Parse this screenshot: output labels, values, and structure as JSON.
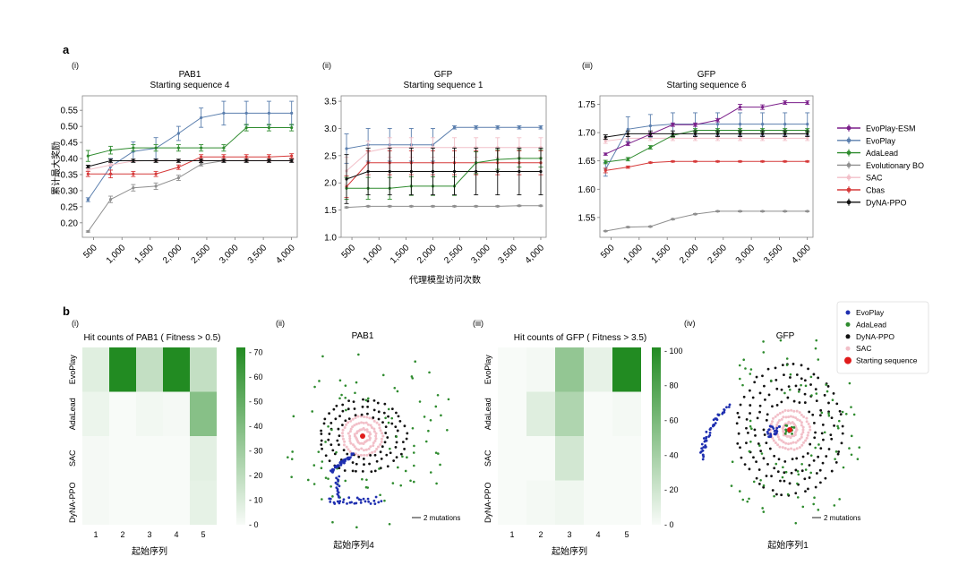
{
  "panel_a": {
    "letter": "a",
    "ylabel": "累计最大奖励",
    "xlabel": "代理模型访问次数",
    "legend": [
      {
        "name": "EvoPlay-ESM",
        "color": "#7b1f8a"
      },
      {
        "name": "EvoPlay",
        "color": "#5b7fae"
      },
      {
        "name": "AdaLead",
        "color": "#2e8b2e"
      },
      {
        "name": "Evolutionary BO",
        "color": "#8f8f8f"
      },
      {
        "name": "SAC",
        "color": "#f2bfc8"
      },
      {
        "name": "Cbas",
        "color": "#d63a3a"
      },
      {
        "name": "DyNA-PPO",
        "color": "#111111"
      }
    ]
  },
  "panel_b": {
    "letter": "b",
    "scatter_legend": [
      {
        "name": "EvoPlay",
        "color": "#1f2fb0"
      },
      {
        "name": "AdaLead",
        "color": "#2e8b2e"
      },
      {
        "name": "DyNA-PPO",
        "color": "#111111"
      },
      {
        "name": "SAC",
        "color": "#f2bfc8"
      },
      {
        "name": "Starting sequence",
        "color": "#e01b1b"
      }
    ],
    "scale_label": "2 mutations"
  },
  "chart_data": [
    {
      "id": "a-i",
      "type": "line",
      "label": "(i)",
      "title": "PAB1",
      "subtitle": "Starting sequence 4",
      "xlabel": "代理模型访问次数",
      "ylabel": "累计最大奖励",
      "x": [
        400,
        800,
        1200,
        1600,
        2000,
        2400,
        2800,
        3200,
        3600,
        4000
      ],
      "xticks": [
        500,
        1000,
        1500,
        2000,
        2500,
        3000,
        3500,
        4000
      ],
      "xtick_labels": [
        "500",
        "1,000",
        "1,500",
        "2,000",
        "2,500",
        "3,000",
        "3,500",
        "4,000"
      ],
      "yticks": [
        0.2,
        0.25,
        0.3,
        0.35,
        0.4,
        0.45,
        0.5,
        0.55
      ],
      "ytick_labels": [
        "0.20",
        "0.25",
        "0.30",
        "0.35",
        "0.40",
        "0.45",
        "0.50",
        "0.55"
      ],
      "ylim": [
        0.155,
        0.595
      ],
      "series": [
        {
          "name": "EvoPlay",
          "values": [
            0.272,
            0.375,
            0.422,
            0.432,
            0.478,
            0.527,
            0.541,
            0.541,
            0.541,
            0.541
          ],
          "err": [
            0.006,
            0.025,
            0.03,
            0.033,
            0.022,
            0.03,
            0.037,
            0.037,
            0.037,
            0.037
          ]
        },
        {
          "name": "AdaLead",
          "values": [
            0.408,
            0.426,
            0.433,
            0.433,
            0.433,
            0.433,
            0.433,
            0.496,
            0.496,
            0.496
          ],
          "err": [
            0.017,
            0.012,
            0.01,
            0.01,
            0.01,
            0.01,
            0.01,
            0.01,
            0.01,
            0.01
          ]
        },
        {
          "name": "Evolutionary BO",
          "values": [
            0.173,
            0.273,
            0.309,
            0.314,
            0.34,
            0.382,
            0.393,
            0.393,
            0.393,
            0.393
          ],
          "err": [
            0.002,
            0.01,
            0.01,
            0.01,
            0.008,
            0.005,
            0.003,
            0.003,
            0.003,
            0.003
          ]
        },
        {
          "name": "SAC",
          "values": [
            0.365,
            0.38,
            0.392,
            0.394,
            0.394,
            0.394,
            0.394,
            0.394,
            0.394,
            0.394
          ],
          "err": [
            0.004,
            0.004,
            0.003,
            0.003,
            0.003,
            0.003,
            0.003,
            0.003,
            0.003,
            0.003
          ]
        },
        {
          "name": "Cbas",
          "values": [
            0.352,
            0.352,
            0.352,
            0.352,
            0.373,
            0.405,
            0.405,
            0.405,
            0.405,
            0.408
          ],
          "err": [
            0.008,
            0.012,
            0.008,
            0.008,
            0.007,
            0.007,
            0.007,
            0.007,
            0.007,
            0.007
          ]
        },
        {
          "name": "DyNA-PPO",
          "values": [
            0.375,
            0.393,
            0.393,
            0.393,
            0.393,
            0.393,
            0.393,
            0.393,
            0.393,
            0.393
          ],
          "err": [
            0.004,
            0.005,
            0.005,
            0.005,
            0.005,
            0.005,
            0.005,
            0.005,
            0.005,
            0.005
          ]
        }
      ]
    },
    {
      "id": "a-ii",
      "type": "line",
      "label": "(ii)",
      "title": "GFP",
      "subtitle": "Starting sequence 1",
      "xlabel": "代理模型访问次数",
      "ylabel": "",
      "x": [
        400,
        800,
        1200,
        1600,
        2000,
        2400,
        2800,
        3200,
        3600,
        4000
      ],
      "xticks": [
        500,
        1000,
        1500,
        2000,
        2500,
        3000,
        3500,
        4000
      ],
      "xtick_labels": [
        "500",
        "1,000",
        "1,500",
        "2,000",
        "2,500",
        "3,000",
        "3,500",
        "4,000"
      ],
      "yticks": [
        1.0,
        1.5,
        2.0,
        2.5,
        3.0,
        3.5
      ],
      "ytick_labels": [
        "1.0",
        "1.5",
        "2.0",
        "2.5",
        "3.0",
        "3.5"
      ],
      "ylim": [
        1.0,
        3.6
      ],
      "series": [
        {
          "name": "EvoPlay",
          "values": [
            2.63,
            2.7,
            2.7,
            2.7,
            2.7,
            3.02,
            3.02,
            3.02,
            3.02,
            3.02
          ],
          "err": [
            0.27,
            0.3,
            0.3,
            0.3,
            0.3,
            0.03,
            0.03,
            0.03,
            0.03,
            0.03
          ]
        },
        {
          "name": "SAC",
          "values": [
            2.22,
            2.57,
            2.65,
            2.65,
            2.65,
            2.65,
            2.65,
            2.65,
            2.65,
            2.65
          ],
          "err": [
            0.25,
            0.2,
            0.18,
            0.18,
            0.18,
            0.18,
            0.18,
            0.18,
            0.18,
            0.18
          ]
        },
        {
          "name": "Cbas",
          "values": [
            1.93,
            2.37,
            2.37,
            2.37,
            2.37,
            2.37,
            2.37,
            2.37,
            2.37,
            2.37
          ],
          "err": [
            0.2,
            0.22,
            0.22,
            0.22,
            0.22,
            0.22,
            0.22,
            0.22,
            0.22,
            0.22
          ]
        },
        {
          "name": "AdaLead",
          "values": [
            1.9,
            1.9,
            1.9,
            1.94,
            1.94,
            1.94,
            2.37,
            2.43,
            2.45,
            2.45
          ],
          "err": [
            0.2,
            0.2,
            0.2,
            0.17,
            0.17,
            0.17,
            0.2,
            0.18,
            0.16,
            0.16
          ]
        },
        {
          "name": "DyNA-PPO",
          "values": [
            2.07,
            2.21,
            2.21,
            2.21,
            2.21,
            2.21,
            2.21,
            2.21,
            2.21,
            2.21
          ],
          "err": [
            0.45,
            0.43,
            0.43,
            0.43,
            0.43,
            0.43,
            0.43,
            0.43,
            0.43,
            0.43
          ]
        },
        {
          "name": "Evolutionary BO",
          "values": [
            1.55,
            1.57,
            1.57,
            1.57,
            1.57,
            1.57,
            1.57,
            1.57,
            1.58,
            1.58
          ],
          "err": [
            0.01,
            0.01,
            0.01,
            0.01,
            0.01,
            0.01,
            0.01,
            0.01,
            0.01,
            0.01
          ]
        }
      ]
    },
    {
      "id": "a-iii",
      "type": "line",
      "label": "(iii)",
      "title": "GFP",
      "subtitle": "Starting sequence 6",
      "xlabel": "代理模型访问次数",
      "ylabel": "",
      "x": [
        400,
        800,
        1200,
        1600,
        2000,
        2400,
        2800,
        3200,
        3600,
        4000
      ],
      "xticks": [
        500,
        1000,
        1500,
        2000,
        2500,
        3000,
        3500,
        4000
      ],
      "xtick_labels": [
        "500",
        "1,000",
        "1,500",
        "2,000",
        "2,500",
        "3,000",
        "3,500",
        "4,000"
      ],
      "yticks": [
        1.55,
        1.6,
        1.65,
        1.7,
        1.75
      ],
      "ytick_labels": [
        "1.55",
        "1.60",
        "1.65",
        "1.70",
        "1.75"
      ],
      "ylim": [
        1.515,
        1.765
      ],
      "series": [
        {
          "name": "SAC",
          "values": [
            1.685,
            1.69,
            1.69,
            1.69,
            1.69,
            1.69,
            1.69,
            1.69,
            1.69,
            1.69
          ],
          "err": [
            0.004,
            0.004,
            0.004,
            0.004,
            0.004,
            0.004,
            0.004,
            0.004,
            0.004,
            0.004
          ]
        },
        {
          "name": "EvoPlay",
          "values": [
            1.635,
            1.706,
            1.712,
            1.715,
            1.715,
            1.715,
            1.715,
            1.715,
            1.715,
            1.715
          ],
          "err": [
            0.012,
            0.022,
            0.02,
            0.02,
            0.02,
            0.02,
            0.02,
            0.02,
            0.02,
            0.02
          ]
        },
        {
          "name": "AdaLead",
          "values": [
            1.648,
            1.653,
            1.674,
            1.695,
            1.704,
            1.704,
            1.704,
            1.704,
            1.704,
            1.704
          ],
          "err": [
            0.003,
            0.003,
            0.003,
            0.003,
            0.003,
            0.003,
            0.003,
            0.003,
            0.003,
            0.003
          ]
        },
        {
          "name": "Evolutionary BO",
          "values": [
            1.526,
            1.533,
            1.534,
            1.547,
            1.556,
            1.561,
            1.561,
            1.561,
            1.561,
            1.561
          ],
          "err": [
            0.001,
            0.001,
            0.001,
            0.001,
            0.001,
            0.001,
            0.001,
            0.001,
            0.001,
            0.001
          ]
        },
        {
          "name": "Cbas",
          "values": [
            1.633,
            1.639,
            1.647,
            1.649,
            1.649,
            1.649,
            1.649,
            1.649,
            1.649,
            1.649
          ],
          "err": [
            0.004,
            0.002,
            0.001,
            0.001,
            0.001,
            0.001,
            0.001,
            0.001,
            0.001,
            0.001
          ]
        },
        {
          "name": "EvoPlay-ESM",
          "values": [
            1.662,
            1.68,
            1.697,
            1.714,
            1.714,
            1.722,
            1.745,
            1.745,
            1.753,
            1.753
          ],
          "err": [
            0.002,
            0.003,
            0.003,
            0.003,
            0.003,
            0.003,
            0.005,
            0.004,
            0.003,
            0.003
          ]
        },
        {
          "name": "DyNA-PPO",
          "values": [
            1.692,
            1.698,
            1.698,
            1.698,
            1.698,
            1.698,
            1.698,
            1.698,
            1.698,
            1.698
          ],
          "err": [
            0.004,
            0.005,
            0.005,
            0.005,
            0.005,
            0.005,
            0.005,
            0.005,
            0.005,
            0.005
          ]
        }
      ]
    },
    {
      "id": "b-i",
      "type": "heatmap",
      "label": "(i)",
      "title": "Hit counts of PAB1 ( Fitness > 0.5)",
      "xlabel": "起始序列",
      "rows": [
        "EvoPlay",
        "AdaLead",
        "SAC",
        "DyNA-PPO"
      ],
      "cols": [
        "1",
        "2",
        "3",
        "4",
        "5"
      ],
      "values": [
        [
          8,
          72,
          18,
          72,
          18
        ],
        [
          4,
          0,
          2,
          1,
          38
        ],
        [
          1,
          0,
          0,
          0,
          7
        ],
        [
          1,
          0,
          0,
          0,
          6
        ]
      ],
      "vmin": 0,
      "vmax": 72,
      "cbar_ticks": [
        0,
        10,
        20,
        30,
        40,
        50,
        60,
        70
      ]
    },
    {
      "id": "b-iii",
      "type": "heatmap",
      "label": "(iii)",
      "title": "Hit counts of GFP ( Fitness > 3.5)",
      "xlabel": "起始序列",
      "rows": [
        "EvoPlay",
        "AdaLead",
        "SAC",
        "DyNA-PPO"
      ],
      "cols": [
        "1",
        "2",
        "3",
        "4",
        "5"
      ],
      "values": [
        [
          0,
          2,
          48,
          8,
          102
        ],
        [
          0,
          12,
          35,
          0,
          2
        ],
        [
          0,
          0,
          18,
          0,
          0
        ],
        [
          0,
          2,
          4,
          0,
          0
        ]
      ],
      "vmin": 0,
      "vmax": 102,
      "cbar_ticks": [
        0,
        20,
        40,
        60,
        80,
        100
      ]
    },
    {
      "id": "b-ii",
      "type": "scatter",
      "label": "(ii)",
      "title": "PAB1",
      "xlabel": "起始序列4",
      "series": [
        "EvoPlay",
        "AdaLead",
        "DyNA-PPO",
        "SAC",
        "Starting sequence"
      ]
    },
    {
      "id": "b-iv",
      "type": "scatter",
      "label": "(iv)",
      "title": "GFP",
      "xlabel": "起始序列1",
      "series": [
        "EvoPlay",
        "AdaLead",
        "DyNA-PPO",
        "SAC",
        "Starting sequence"
      ]
    }
  ]
}
